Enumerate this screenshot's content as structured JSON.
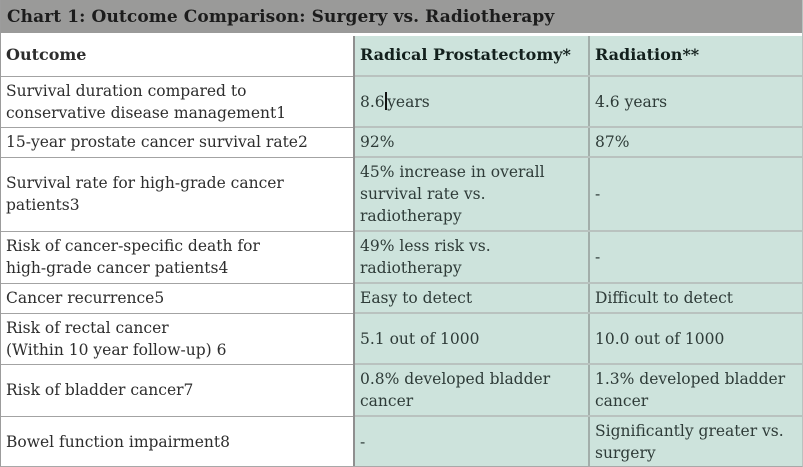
{
  "title": "Chart 1: Outcome Comparison: Surgery vs. Radiotherapy",
  "colors": {
    "title_bar_bg": "#9a9a99",
    "green_cell_bg": "#cde3dc",
    "outcome_cell_bg": "#ffffff",
    "title_text": "#1c1c1c",
    "body_text": "#2d2d2d"
  },
  "table": {
    "columns": [
      "Outcome",
      "Radical Prostatectomy*",
      "Radiation**"
    ],
    "rows": [
      {
        "outcome": "Survival duration compared to\nconservative disease management1",
        "cells": [
          {
            "pre": "8.6",
            "caret": true,
            "post": "years"
          },
          {
            "text": "4.6 years"
          }
        ]
      },
      {
        "outcome": "15-year prostate cancer survival rate2",
        "cells": [
          {
            "text": "92%"
          },
          {
            "text": "87%"
          }
        ]
      },
      {
        "outcome": "Survival rate for high-grade cancer\npatients3",
        "cells": [
          {
            "text": "45% increase in overall\nsurvival rate vs.\nradiotherapy"
          },
          {
            "text": "-"
          }
        ]
      },
      {
        "outcome": "Risk of cancer-specific death for\nhigh-grade cancer patients4",
        "cells": [
          {
            "text": "49% less risk vs.\nradiotherapy"
          },
          {
            "text": "-"
          }
        ]
      },
      {
        "outcome": "Cancer recurrence5",
        "cells": [
          {
            "text": "Easy to detect"
          },
          {
            "text": "Difficult to detect"
          }
        ]
      },
      {
        "outcome": "Risk of rectal cancer\n(Within 10 year follow-up) 6",
        "cells": [
          {
            "text": "5.1 out of 1000"
          },
          {
            "text": "10.0 out of 1000"
          }
        ]
      },
      {
        "outcome": "Risk of bladder cancer7",
        "cells": [
          {
            "text": "0.8% developed bladder\ncancer"
          },
          {
            "text": "1.3% developed bladder\ncancer"
          }
        ]
      },
      {
        "outcome": "Bowel function impairment8",
        "cells": [
          {
            "text": "-"
          },
          {
            "text": "Significantly greater vs.\nsurgery"
          }
        ]
      }
    ]
  }
}
